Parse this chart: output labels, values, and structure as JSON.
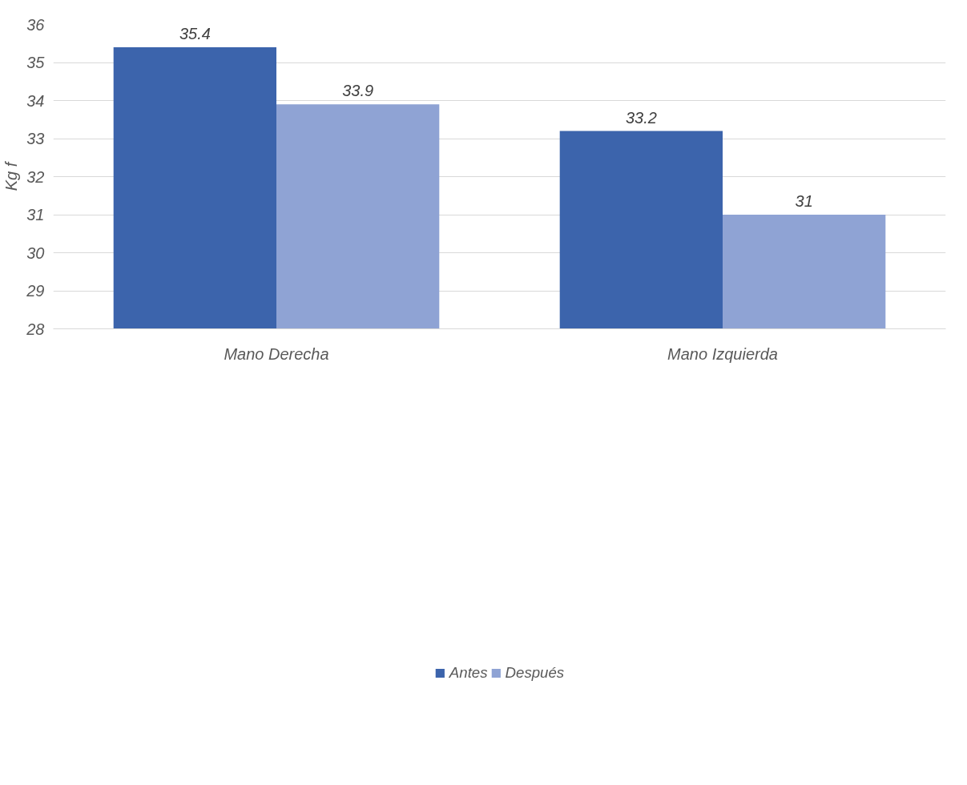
{
  "chart_data": {
    "type": "bar",
    "categories": [
      "Mano Derecha",
      "Mano Izquierda"
    ],
    "series": [
      {
        "name": "Antes",
        "color": "#3c64ac",
        "values": [
          35.4,
          33.2
        ]
      },
      {
        "name": "Después",
        "color": "#8fa3d4",
        "values": [
          33.9,
          31
        ]
      }
    ],
    "ylabel": "Kg f",
    "ylim": [
      28,
      36
    ],
    "yticks": [
      28,
      29,
      30,
      31,
      32,
      33,
      34,
      35,
      36
    ],
    "grid": "y",
    "legend": "bottom",
    "data_labels": true
  }
}
